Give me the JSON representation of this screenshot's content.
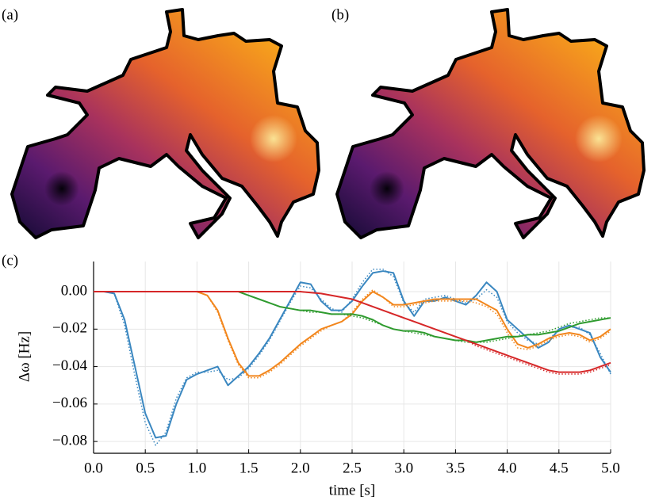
{
  "panels": [
    "(a)",
    "(b)"
  ],
  "chart_data": {
    "type": "line",
    "panel": "(c)",
    "xlabel": "time [s]",
    "ylabel": "Δω [Hz]",
    "xlim": [
      0,
      5
    ],
    "ylim": [
      -0.0863,
      0.0161
    ],
    "xticks": [
      {
        "value": 0,
        "label": "0.0"
      },
      {
        "value": 0.5,
        "label": "0.5"
      },
      {
        "value": 1,
        "label": "1.0"
      },
      {
        "value": 1.5,
        "label": "1.5"
      },
      {
        "value": 2,
        "label": "2.0"
      },
      {
        "value": 2.5,
        "label": "2.5"
      },
      {
        "value": 3,
        "label": "3.0"
      },
      {
        "value": 3.5,
        "label": "3.5"
      },
      {
        "value": 4,
        "label": "4.0"
      },
      {
        "value": 4.5,
        "label": "4.5"
      },
      {
        "value": 5,
        "label": "5.0"
      }
    ],
    "yticks": [
      {
        "value": 0,
        "label": "0.00"
      },
      {
        "value": -0.02,
        "label": "−0.02"
      },
      {
        "value": -0.04,
        "label": "−0.04"
      },
      {
        "value": -0.06,
        "label": "−0.06"
      },
      {
        "value": -0.08,
        "label": "−0.08"
      }
    ],
    "grid": true,
    "x": [
      0,
      0.1,
      0.2,
      0.3,
      0.4,
      0.5,
      0.6,
      0.7,
      0.8,
      0.9,
      1,
      1.1,
      1.2,
      1.3,
      1.4,
      1.5,
      1.6,
      1.7,
      1.8,
      1.9,
      2,
      2.1,
      2.2,
      2.3,
      2.4,
      2.5,
      2.6,
      2.7,
      2.8,
      2.9,
      3,
      3.1,
      3.2,
      3.3,
      3.4,
      3.5,
      3.6,
      3.7,
      3.8,
      3.9,
      4,
      4.1,
      4.2,
      4.3,
      4.4,
      4.5,
      4.6,
      4.7,
      4.8,
      4.9,
      5
    ],
    "series": [
      {
        "color": "#3a87c0",
        "style": "solid",
        "values": [
          0,
          0,
          -0.001,
          -0.015,
          -0.04,
          -0.065,
          -0.078,
          -0.077,
          -0.06,
          -0.047,
          -0.044,
          -0.042,
          -0.04,
          -0.05,
          -0.045,
          -0.04,
          -0.033,
          -0.025,
          -0.015,
          -0.005,
          0.005,
          0.004,
          -0.005,
          -0.01,
          -0.01,
          -0.005,
          0.003,
          0.01,
          0.011,
          0.01,
          -0.005,
          -0.013,
          -0.005,
          -0.005,
          -0.003,
          -0.005,
          -0.007,
          -0.002,
          0.005,
          0,
          -0.015,
          -0.02,
          -0.025,
          -0.03,
          -0.027,
          -0.02,
          -0.018,
          -0.02,
          -0.022,
          -0.035,
          -0.043
        ]
      },
      {
        "color": "#3a87c0",
        "style": "dotted",
        "values": [
          0,
          0,
          -0.001,
          -0.018,
          -0.045,
          -0.07,
          -0.082,
          -0.075,
          -0.057,
          -0.046,
          -0.043,
          -0.043,
          -0.042,
          -0.047,
          -0.046,
          -0.041,
          -0.034,
          -0.026,
          -0.016,
          -0.006,
          0.003,
          0.002,
          -0.004,
          -0.009,
          -0.011,
          -0.004,
          0.005,
          0.012,
          0.012,
          0.008,
          -0.006,
          -0.011,
          -0.004,
          -0.003,
          -0.002,
          -0.004,
          -0.006,
          -0.004,
          0.001,
          -0.003,
          -0.016,
          -0.022,
          -0.026,
          -0.028,
          -0.025,
          -0.021,
          -0.019,
          -0.019,
          -0.023,
          -0.033,
          -0.044
        ]
      },
      {
        "color": "#f2861c",
        "style": "solid",
        "values": [
          0,
          0,
          0,
          0,
          0,
          0,
          0,
          0,
          0,
          0,
          0,
          -0.002,
          -0.01,
          -0.025,
          -0.038,
          -0.045,
          -0.045,
          -0.042,
          -0.038,
          -0.033,
          -0.028,
          -0.024,
          -0.02,
          -0.018,
          -0.016,
          -0.012,
          -0.005,
          0,
          -0.003,
          -0.007,
          -0.007,
          -0.006,
          -0.005,
          -0.004,
          -0.004,
          -0.004,
          -0.004,
          -0.004,
          -0.007,
          -0.01,
          -0.02,
          -0.028,
          -0.03,
          -0.028,
          -0.025,
          -0.023,
          -0.022,
          -0.023,
          -0.026,
          -0.024,
          -0.02
        ]
      },
      {
        "color": "#f2861c",
        "style": "dotted",
        "values": [
          0,
          0,
          0,
          0,
          0,
          0,
          0,
          0,
          0,
          0,
          0,
          -0.002,
          -0.011,
          -0.026,
          -0.039,
          -0.046,
          -0.046,
          -0.043,
          -0.039,
          -0.034,
          -0.029,
          -0.025,
          -0.021,
          -0.018,
          -0.016,
          -0.011,
          -0.004,
          0.001,
          -0.003,
          -0.008,
          -0.008,
          -0.007,
          -0.006,
          -0.005,
          -0.005,
          -0.005,
          -0.005,
          -0.006,
          -0.008,
          -0.012,
          -0.022,
          -0.03,
          -0.031,
          -0.029,
          -0.026,
          -0.024,
          -0.023,
          -0.024,
          -0.027,
          -0.025,
          -0.021
        ]
      },
      {
        "color": "#2f9b2f",
        "style": "solid",
        "values": [
          0,
          0,
          0,
          0,
          0,
          0,
          0,
          0,
          0,
          0,
          0,
          0,
          0,
          0,
          0,
          -0.002,
          -0.004,
          -0.006,
          -0.008,
          -0.009,
          -0.01,
          -0.01,
          -0.011,
          -0.012,
          -0.012,
          -0.012,
          -0.013,
          -0.015,
          -0.018,
          -0.02,
          -0.021,
          -0.021,
          -0.022,
          -0.024,
          -0.025,
          -0.026,
          -0.026,
          -0.027,
          -0.026,
          -0.025,
          -0.024,
          -0.024,
          -0.023,
          -0.023,
          -0.022,
          -0.021,
          -0.019,
          -0.017,
          -0.016,
          -0.015,
          -0.014
        ]
      },
      {
        "color": "#2f9b2f",
        "style": "dotted",
        "values": [
          0,
          0,
          0,
          0,
          0,
          0,
          0,
          0,
          0,
          0,
          0,
          0,
          0,
          0,
          0,
          -0.002,
          -0.004,
          -0.006,
          -0.008,
          -0.009,
          -0.01,
          -0.011,
          -0.011,
          -0.012,
          -0.012,
          -0.013,
          -0.014,
          -0.016,
          -0.018,
          -0.02,
          -0.021,
          -0.022,
          -0.023,
          -0.024,
          -0.025,
          -0.026,
          -0.027,
          -0.027,
          -0.027,
          -0.026,
          -0.025,
          -0.024,
          -0.023,
          -0.022,
          -0.021,
          -0.019,
          -0.017,
          -0.016,
          -0.015,
          -0.014,
          -0.014
        ]
      },
      {
        "color": "#d62728",
        "style": "solid",
        "values": [
          0,
          0,
          0,
          0,
          0,
          0,
          0,
          0,
          0,
          0,
          0,
          0,
          0,
          0,
          0,
          0,
          0,
          0,
          0,
          0,
          0,
          -0.0005,
          -0.001,
          -0.002,
          -0.003,
          -0.004,
          -0.006,
          -0.008,
          -0.01,
          -0.012,
          -0.014,
          -0.016,
          -0.018,
          -0.02,
          -0.022,
          -0.024,
          -0.026,
          -0.028,
          -0.03,
          -0.032,
          -0.034,
          -0.036,
          -0.038,
          -0.04,
          -0.042,
          -0.043,
          -0.043,
          -0.043,
          -0.042,
          -0.04,
          -0.038
        ]
      },
      {
        "color": "#d62728",
        "style": "dotted",
        "values": [
          0,
          0,
          0,
          0,
          0,
          0,
          0,
          0,
          0,
          0,
          0,
          0,
          0,
          0,
          0,
          0,
          0,
          0,
          0,
          0,
          0,
          -0.0005,
          -0.001,
          -0.002,
          -0.003,
          -0.004,
          -0.006,
          -0.008,
          -0.01,
          -0.012,
          -0.014,
          -0.016,
          -0.018,
          -0.02,
          -0.022,
          -0.024,
          -0.026,
          -0.029,
          -0.031,
          -0.033,
          -0.035,
          -0.037,
          -0.039,
          -0.041,
          -0.043,
          -0.044,
          -0.044,
          -0.044,
          -0.043,
          -0.041,
          -0.039
        ]
      }
    ]
  }
}
